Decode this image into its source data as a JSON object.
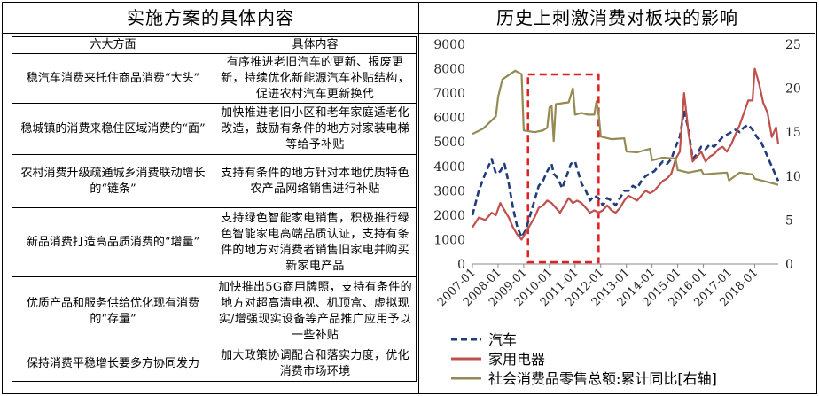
{
  "left_panel": {
    "title": "实施方案的具体内容",
    "columns": [
      "六大方面",
      "具体内容"
    ],
    "rows": [
      {
        "aspect": "稳汽车消费来托住商品消费“大头”",
        "content": "有序推进老旧汽车的更新、报废更新，持续优化新能源汽车补贴结构，促进农村汽车更新换代"
      },
      {
        "aspect": "稳城镇的消费来稳住区域消费的“面”",
        "content": "加快推进老旧小区和老年家庭适老化改造，鼓励有条件的地方对家装电梯等给予补贴"
      },
      {
        "aspect": "农村消费升级疏通城乡消费联动增长的“链条”",
        "content": "支持有条件的地方针对本地优质特色农产品网络销售进行补贴"
      },
      {
        "aspect": "新品消费打造高品质消费的“增量”",
        "content": "支持绿色智能家电销售，积极推行绿色智能家电高端品质认证，支持有条件的地方对消费者销售旧家电并购买新家电产品"
      },
      {
        "aspect": "优质产品和服务供给优化现有消费的“存量”",
        "content": "加快推出5G商用牌照，支持有条件的地方对超高清电视、机顶盒、虚拟现实/增强现实设备等产品推广应用予以一些补贴"
      },
      {
        "aspect": "保持消费平稳增长要多方协同发力",
        "content": "加大政策协调配合和落实力度，优化消费市场环境"
      }
    ]
  },
  "right_panel": {
    "title": "历史上刺激消费对板块的影响"
  },
  "chart_data": {
    "type": "line",
    "title": "历史上刺激消费对板块的影响",
    "x_ticks": [
      "2007-01",
      "2008-01",
      "2009-01",
      "2010-01",
      "2011-01",
      "2012-01",
      "2013-01",
      "2014-01",
      "2015-01",
      "2016-01",
      "2017-01",
      "2018-01"
    ],
    "x_range": [
      "2007-01",
      "2018-12"
    ],
    "y_left": {
      "range": [
        0,
        9000
      ],
      "ticks": [
        0,
        1000,
        2000,
        3000,
        4000,
        5000,
        6000,
        7000,
        8000,
        9000
      ]
    },
    "y_right": {
      "range": [
        0,
        25
      ],
      "ticks": [
        0,
        5,
        10,
        15,
        20,
        25
      ]
    },
    "highlight_period": {
      "from": "2009-03",
      "to": "2011-12",
      "style": "red dashed box"
    },
    "series": [
      {
        "name": "汽车",
        "axis": "left",
        "color": "#1f3d7a",
        "dash": "dashed",
        "points": [
          [
            "2007-01",
            2000
          ],
          [
            "2007-04",
            3000
          ],
          [
            "2007-07",
            3700
          ],
          [
            "2007-10",
            4300
          ],
          [
            "2007-12",
            3700
          ],
          [
            "2008-02",
            3800
          ],
          [
            "2008-04",
            4100
          ],
          [
            "2008-06",
            3300
          ],
          [
            "2008-08",
            2300
          ],
          [
            "2008-10",
            1500
          ],
          [
            "2008-12",
            1100
          ],
          [
            "2009-02",
            1400
          ],
          [
            "2009-04",
            2000
          ],
          [
            "2009-06",
            2600
          ],
          [
            "2009-08",
            3200
          ],
          [
            "2009-10",
            3400
          ],
          [
            "2009-12",
            3800
          ],
          [
            "2010-02",
            4100
          ],
          [
            "2010-03",
            3700
          ],
          [
            "2010-05",
            3500
          ],
          [
            "2010-07",
            3100
          ],
          [
            "2010-09",
            3600
          ],
          [
            "2010-11",
            4100
          ],
          [
            "2011-01",
            4200
          ],
          [
            "2011-02",
            3900
          ],
          [
            "2011-04",
            3300
          ],
          [
            "2011-06",
            3000
          ],
          [
            "2011-08",
            2600
          ],
          [
            "2011-10",
            2800
          ],
          [
            "2011-12",
            2700
          ],
          [
            "2012-02",
            2400
          ],
          [
            "2012-04",
            2700
          ],
          [
            "2012-06",
            2600
          ],
          [
            "2012-08",
            2400
          ],
          [
            "2012-10",
            2700
          ],
          [
            "2012-12",
            3000
          ],
          [
            "2013-02",
            3000
          ],
          [
            "2013-04",
            3200
          ],
          [
            "2013-06",
            3100
          ],
          [
            "2013-08",
            3400
          ],
          [
            "2013-10",
            3600
          ],
          [
            "2013-12",
            3700
          ],
          [
            "2014-02",
            3800
          ],
          [
            "2014-04",
            4000
          ],
          [
            "2014-06",
            4200
          ],
          [
            "2014-08",
            4100
          ],
          [
            "2014-10",
            4300
          ],
          [
            "2014-12",
            4800
          ],
          [
            "2015-02",
            5200
          ],
          [
            "2015-04",
            6300
          ],
          [
            "2015-06",
            5500
          ],
          [
            "2015-08",
            4300
          ],
          [
            "2015-10",
            4500
          ],
          [
            "2015-12",
            4800
          ],
          [
            "2016-02",
            4700
          ],
          [
            "2016-04",
            4900
          ],
          [
            "2016-06",
            4800
          ],
          [
            "2016-08",
            5000
          ],
          [
            "2016-10",
            5200
          ],
          [
            "2016-12",
            5300
          ],
          [
            "2017-02",
            5400
          ],
          [
            "2017-04",
            5500
          ],
          [
            "2017-06",
            5400
          ],
          [
            "2017-08",
            5600
          ],
          [
            "2017-10",
            5700
          ],
          [
            "2017-12",
            5500
          ],
          [
            "2018-02",
            5200
          ],
          [
            "2018-04",
            5000
          ],
          [
            "2018-06",
            4600
          ],
          [
            "2018-08",
            4200
          ],
          [
            "2018-10",
            3800
          ],
          [
            "2018-12",
            3400
          ]
        ]
      },
      {
        "name": "家用电器",
        "axis": "left",
        "color": "#c0504d",
        "dash": "solid",
        "points": [
          [
            "2007-01",
            1500
          ],
          [
            "2007-04",
            1900
          ],
          [
            "2007-07",
            1800
          ],
          [
            "2007-10",
            2100
          ],
          [
            "2007-12",
            2000
          ],
          [
            "2008-02",
            2500
          ],
          [
            "2008-04",
            2200
          ],
          [
            "2008-06",
            1900
          ],
          [
            "2008-08",
            1500
          ],
          [
            "2008-10",
            1200
          ],
          [
            "2008-12",
            1000
          ],
          [
            "2009-02",
            1300
          ],
          [
            "2009-04",
            1600
          ],
          [
            "2009-06",
            1900
          ],
          [
            "2009-08",
            2300
          ],
          [
            "2009-10",
            2400
          ],
          [
            "2009-12",
            2600
          ],
          [
            "2010-02",
            2500
          ],
          [
            "2010-04",
            2300
          ],
          [
            "2010-06",
            2100
          ],
          [
            "2010-08",
            2400
          ],
          [
            "2010-10",
            2700
          ],
          [
            "2010-12",
            2500
          ],
          [
            "2011-02",
            2600
          ],
          [
            "2011-04",
            2500
          ],
          [
            "2011-06",
            2300
          ],
          [
            "2011-08",
            2100
          ],
          [
            "2011-10",
            2200
          ],
          [
            "2011-12",
            2100
          ],
          [
            "2012-02",
            2200
          ],
          [
            "2012-04",
            2400
          ],
          [
            "2012-06",
            2200
          ],
          [
            "2012-08",
            2100
          ],
          [
            "2012-10",
            2300
          ],
          [
            "2012-12",
            2600
          ],
          [
            "2013-02",
            2800
          ],
          [
            "2013-04",
            2700
          ],
          [
            "2013-06",
            2600
          ],
          [
            "2013-08",
            2800
          ],
          [
            "2013-10",
            3000
          ],
          [
            "2013-12",
            2900
          ],
          [
            "2014-02",
            3000
          ],
          [
            "2014-04",
            3200
          ],
          [
            "2014-06",
            3400
          ],
          [
            "2014-08",
            3500
          ],
          [
            "2014-10",
            3700
          ],
          [
            "2014-12",
            4300
          ],
          [
            "2015-02",
            4600
          ],
          [
            "2015-04",
            7000
          ],
          [
            "2015-06",
            5400
          ],
          [
            "2015-08",
            4200
          ],
          [
            "2015-10",
            4400
          ],
          [
            "2015-12",
            4600
          ],
          [
            "2016-02",
            4200
          ],
          [
            "2016-04",
            4400
          ],
          [
            "2016-06",
            4500
          ],
          [
            "2016-08",
            4700
          ],
          [
            "2016-10",
            4800
          ],
          [
            "2016-12",
            4600
          ],
          [
            "2017-02",
            4900
          ],
          [
            "2017-04",
            5300
          ],
          [
            "2017-06",
            5700
          ],
          [
            "2017-08",
            6200
          ],
          [
            "2017-10",
            6700
          ],
          [
            "2017-12",
            6700
          ],
          [
            "2018-01",
            8000
          ],
          [
            "2018-03",
            7400
          ],
          [
            "2018-05",
            6600
          ],
          [
            "2018-07",
            6200
          ],
          [
            "2018-09",
            5200
          ],
          [
            "2018-11",
            5600
          ],
          [
            "2018-12",
            4900
          ]
        ]
      },
      {
        "name": "社会消费品零售总额:累计同比[右轴]",
        "axis": "right",
        "color": "#948a54",
        "dash": "solid",
        "points": [
          [
            "2007-01",
            14.8
          ],
          [
            "2007-06",
            15.4
          ],
          [
            "2007-12",
            16.8
          ],
          [
            "2008-01",
            19.0
          ],
          [
            "2008-03",
            21.0
          ],
          [
            "2008-06",
            21.5
          ],
          [
            "2008-09",
            22.0
          ],
          [
            "2008-12",
            21.6
          ],
          [
            "2009-01",
            15.2
          ],
          [
            "2009-06",
            15.0
          ],
          [
            "2009-10",
            15.2
          ],
          [
            "2009-12",
            15.5
          ],
          [
            "2010-01",
            17.8
          ],
          [
            "2010-02",
            18.0
          ],
          [
            "2010-03",
            14.0
          ],
          [
            "2010-04",
            18.2
          ],
          [
            "2010-07",
            18.3
          ],
          [
            "2010-10",
            18.4
          ],
          [
            "2010-12",
            20.0
          ],
          [
            "2011-01",
            17.0
          ],
          [
            "2011-04",
            17.2
          ],
          [
            "2011-07",
            17.0
          ],
          [
            "2011-10",
            17.0
          ],
          [
            "2011-11",
            18.5
          ],
          [
            "2011-12",
            17.2
          ],
          [
            "2012-01",
            14.5
          ],
          [
            "2012-06",
            14.2
          ],
          [
            "2012-12",
            14.3
          ],
          [
            "2013-01",
            12.8
          ],
          [
            "2013-06",
            12.7
          ],
          [
            "2013-12",
            13.1
          ],
          [
            "2014-01",
            11.8
          ],
          [
            "2014-06",
            12.1
          ],
          [
            "2014-12",
            12.0
          ],
          [
            "2015-01",
            10.7
          ],
          [
            "2015-06",
            10.4
          ],
          [
            "2015-12",
            10.7
          ],
          [
            "2016-01",
            10.2
          ],
          [
            "2016-06",
            10.3
          ],
          [
            "2016-12",
            10.4
          ],
          [
            "2017-01",
            9.5
          ],
          [
            "2017-06",
            10.4
          ],
          [
            "2017-12",
            10.2
          ],
          [
            "2018-01",
            9.7
          ],
          [
            "2018-06",
            9.4
          ],
          [
            "2018-12",
            9.0
          ]
        ]
      }
    ]
  }
}
